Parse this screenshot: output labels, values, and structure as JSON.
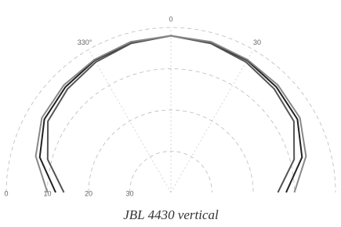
{
  "chart_data": {
    "type": "polar",
    "caption": "JBL 4430 vertical",
    "rlim": [
      -40,
      0
    ],
    "rticks": [
      {
        "value": -30,
        "label": "30"
      },
      {
        "value": -20,
        "label": "20"
      },
      {
        "value": -10,
        "label": "10"
      },
      0
    ],
    "thetalim": [
      -90,
      90
    ],
    "thetaticks": [
      {
        "value": -30,
        "label": "330°"
      },
      0,
      30
    ],
    "theta": [
      -90,
      -75,
      -60,
      -45,
      -30,
      -15,
      0,
      15,
      30,
      45,
      60,
      75,
      90
    ],
    "series": [
      {
        "color": "#222222",
        "values": [
          -12,
          -7,
          -4.5,
          -3.8,
          -3,
          -2.4,
          -2,
          -2.4,
          -3,
          -3.8,
          -4.5,
          -7,
          -12
        ]
      },
      {
        "color": "#555555",
        "values": [
          -14,
          -9,
          -5.5,
          -4.5,
          -3.5,
          -2.6,
          -2,
          -2.6,
          -3.5,
          -4.5,
          -5.5,
          -9,
          -14
        ]
      },
      {
        "color": "#888888",
        "values": [
          -10,
          -6,
          -3.8,
          -3.2,
          -2.8,
          -2.2,
          -2,
          -2.2,
          -2.8,
          -3.2,
          -3.8,
          -6,
          -10
        ]
      }
    ],
    "grid": true
  }
}
